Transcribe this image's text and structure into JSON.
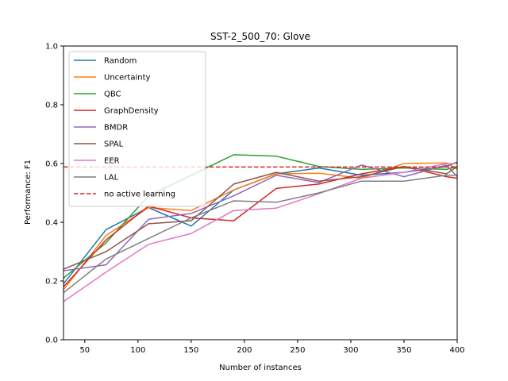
{
  "chart_data": {
    "type": "line",
    "title": "SST-2_500_70: Glove",
    "xlabel": "Number of instances",
    "ylabel": "Performance: F1",
    "xlim": [
      30,
      400
    ],
    "ylim": [
      0.0,
      1.0
    ],
    "xticks": [
      50,
      100,
      150,
      200,
      250,
      300,
      350,
      400
    ],
    "xtick_labels": [
      "50",
      "100",
      "150",
      "200",
      "250",
      "300",
      "350",
      "400"
    ],
    "yticks": [
      0.0,
      0.2,
      0.4,
      0.6,
      0.8,
      1.0
    ],
    "ytick_labels": [
      "0.0",
      "0.2",
      "0.4",
      "0.6",
      "0.8",
      "1.0"
    ],
    "grid": false,
    "legend_position": "top-left",
    "series": [
      {
        "name": "Random",
        "color": "#1f77b4",
        "dashed": false,
        "x": [
          30,
          70,
          110,
          150,
          190,
          230,
          270,
          310,
          350,
          390,
          400
        ],
        "y": [
          0.19,
          0.375,
          0.45,
          0.387,
          0.51,
          0.565,
          0.585,
          0.56,
          0.57,
          0.59,
          0.605
        ]
      },
      {
        "name": "Uncertainty",
        "color": "#ff7f0e",
        "dashed": false,
        "x": [
          30,
          70,
          110,
          150,
          190,
          230,
          270,
          310,
          350,
          390,
          400
        ],
        "y": [
          0.17,
          0.355,
          0.45,
          0.44,
          0.51,
          0.565,
          0.567,
          0.55,
          0.6,
          0.602,
          0.58
        ]
      },
      {
        "name": "QBC",
        "color": "#2ca02c",
        "dashed": false,
        "x": [
          30,
          70,
          110,
          150,
          190,
          230,
          270,
          310,
          350,
          390,
          400
        ],
        "y": [
          0.21,
          0.33,
          0.49,
          0.56,
          0.63,
          0.625,
          0.59,
          0.58,
          0.585,
          0.58,
          0.59
        ]
      },
      {
        "name": "GraphDensity",
        "color": "#d62728",
        "dashed": false,
        "x": [
          30,
          70,
          110,
          150,
          190,
          230,
          270,
          310,
          350,
          390,
          400
        ],
        "y": [
          0.18,
          0.34,
          0.455,
          0.415,
          0.405,
          0.515,
          0.53,
          0.565,
          0.59,
          0.555,
          0.55
        ]
      },
      {
        "name": "BMDR",
        "color": "#9467bd",
        "dashed": false,
        "x": [
          30,
          70,
          110,
          150,
          190,
          230,
          270,
          310,
          350,
          390,
          400
        ],
        "y": [
          0.235,
          0.255,
          0.41,
          0.43,
          0.49,
          0.56,
          0.535,
          0.595,
          0.555,
          0.595,
          0.555
        ]
      },
      {
        "name": "SPAL",
        "color": "#8c564b",
        "dashed": false,
        "x": [
          30,
          70,
          110,
          150,
          190,
          230,
          270,
          310,
          350,
          390,
          400
        ],
        "y": [
          0.24,
          0.3,
          0.395,
          0.405,
          0.53,
          0.57,
          0.54,
          0.555,
          0.59,
          0.565,
          0.59
        ]
      },
      {
        "name": "EER",
        "color": "#e377c2",
        "dashed": false,
        "x": [
          30,
          70,
          110,
          150,
          190,
          230,
          270,
          310,
          350,
          390,
          400
        ],
        "y": [
          0.13,
          0.23,
          0.325,
          0.362,
          0.44,
          0.448,
          0.497,
          0.55,
          0.57,
          0.6,
          0.6
        ]
      },
      {
        "name": "LAL",
        "color": "#7f7f7f",
        "dashed": false,
        "x": [
          30,
          70,
          110,
          150,
          190,
          230,
          270,
          310,
          350,
          390,
          400
        ],
        "y": [
          0.16,
          0.275,
          0.345,
          0.415,
          0.473,
          0.468,
          0.5,
          0.54,
          0.54,
          0.56,
          0.56
        ]
      },
      {
        "name": "no active learning",
        "color": "#d62728",
        "dashed": true,
        "x": [
          30,
          400
        ],
        "y": [
          0.588,
          0.588
        ]
      }
    ]
  }
}
